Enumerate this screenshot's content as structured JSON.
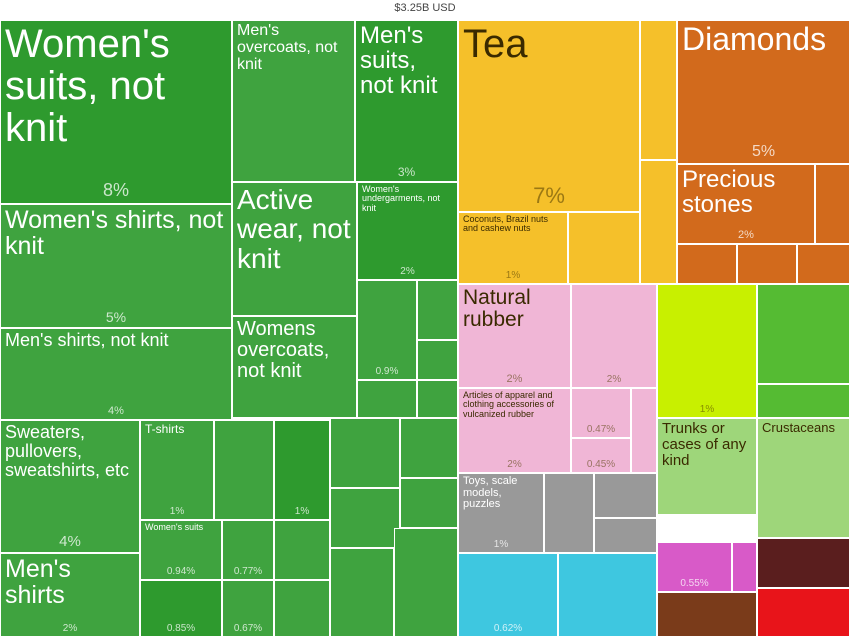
{
  "total_label": "$3.25B USD",
  "chart_data": {
    "type": "treemap",
    "total": "$3.25B USD",
    "colors": {
      "textiles": "#3fa33f",
      "textiles_dark": "#2e9a2e",
      "foodstuffs": "#f5c02a",
      "stones": "#d26a1c",
      "plastics": "#f0b6d6",
      "vegetable": "#c8f000",
      "animal": "#9ed67a",
      "misc": "#999999",
      "machines": "#3ec7e0"
    },
    "items": [
      {
        "label": "Women's suits, not knit",
        "pct": "8%"
      },
      {
        "label": "Men's overcoats, not knit",
        "pct": ""
      },
      {
        "label": "Men's suits, not knit",
        "pct": "3%"
      },
      {
        "label": "Tea",
        "pct": "7%"
      },
      {
        "label": "Diamonds",
        "pct": "5%"
      },
      {
        "label": "Precious stones",
        "pct": "2%"
      },
      {
        "label": "Active wear, not knit",
        "pct": ""
      },
      {
        "label": "Women's undergarments, not knit",
        "pct": "2%"
      },
      {
        "label": "Coconuts, Brazil nuts and cashew nuts",
        "pct": "1%"
      },
      {
        "label": "Women's shirts, not knit",
        "pct": "5%"
      },
      {
        "label": "Natural rubber",
        "pct": "2%"
      },
      {
        "label": "",
        "pct": "2%"
      },
      {
        "label": "",
        "pct": "1%"
      },
      {
        "label": "Womens overcoats, not knit",
        "pct": ""
      },
      {
        "label": "",
        "pct": "0.9%"
      },
      {
        "label": "Men's shirts, not knit",
        "pct": "4%"
      },
      {
        "label": "Articles of apparel and clothing accessories of vulcanized rubber",
        "pct": "2%"
      },
      {
        "label": "",
        "pct": "0.47%"
      },
      {
        "label": "",
        "pct": "0.45%"
      },
      {
        "label": "Trunks or cases of any kind",
        "pct": ""
      },
      {
        "label": "Crustaceans",
        "pct": ""
      },
      {
        "label": "Sweaters, pullovers, sweatshirts, etc",
        "pct": "4%"
      },
      {
        "label": "T-shirts",
        "pct": "1%"
      },
      {
        "label": "",
        "pct": "1%"
      },
      {
        "label": "Toys, scale models, puzzles",
        "pct": "1%"
      },
      {
        "label": "Women's suits",
        "pct": "0.94%"
      },
      {
        "label": "",
        "pct": "0.77%"
      },
      {
        "label": "Men's shirts",
        "pct": "2%"
      },
      {
        "label": "",
        "pct": "0.85%"
      },
      {
        "label": "",
        "pct": "0.67%"
      },
      {
        "label": "",
        "pct": "0.62%"
      },
      {
        "label": "",
        "pct": "0.55%"
      }
    ]
  }
}
